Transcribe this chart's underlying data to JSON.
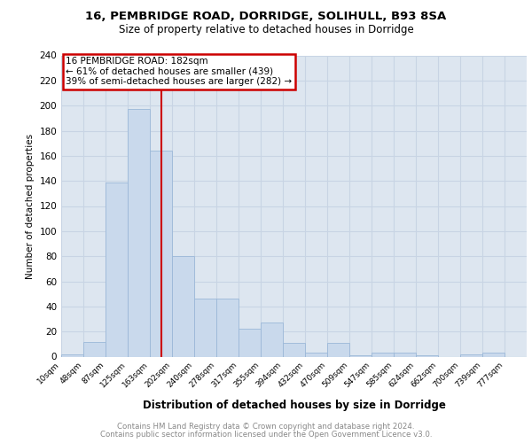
{
  "title1": "16, PEMBRIDGE ROAD, DORRIDGE, SOLIHULL, B93 8SA",
  "title2": "Size of property relative to detached houses in Dorridge",
  "xlabel": "Distribution of detached houses by size in Dorridge",
  "ylabel": "Number of detached properties",
  "bar_labels": [
    "10sqm",
    "48sqm",
    "87sqm",
    "125sqm",
    "163sqm",
    "202sqm",
    "240sqm",
    "278sqm",
    "317sqm",
    "355sqm",
    "394sqm",
    "432sqm",
    "470sqm",
    "509sqm",
    "547sqm",
    "585sqm",
    "624sqm",
    "662sqm",
    "700sqm",
    "739sqm",
    "777sqm"
  ],
  "bar_values": [
    2,
    12,
    139,
    197,
    164,
    80,
    46,
    46,
    22,
    27,
    11,
    3,
    11,
    1,
    3,
    3,
    1,
    0,
    2,
    3,
    0
  ],
  "bar_color": "#c9d9ec",
  "bar_edge_color": "#9bb8d8",
  "property_line_x": 4,
  "annotation_title": "16 PEMBRIDGE ROAD: 182sqm",
  "annotation_line1": "← 61% of detached houses are smaller (439)",
  "annotation_line2": "39% of semi-detached houses are larger (282) →",
  "annotation_box_color": "#cc0000",
  "grid_color": "#c8d4e4",
  "background_color": "#dde6f0",
  "ylim": [
    0,
    240
  ],
  "yticks": [
    0,
    20,
    40,
    60,
    80,
    100,
    120,
    140,
    160,
    180,
    200,
    220,
    240
  ],
  "footer1": "Contains HM Land Registry data © Crown copyright and database right 2024.",
  "footer2": "Contains public sector information licensed under the Open Government Licence v3.0."
}
